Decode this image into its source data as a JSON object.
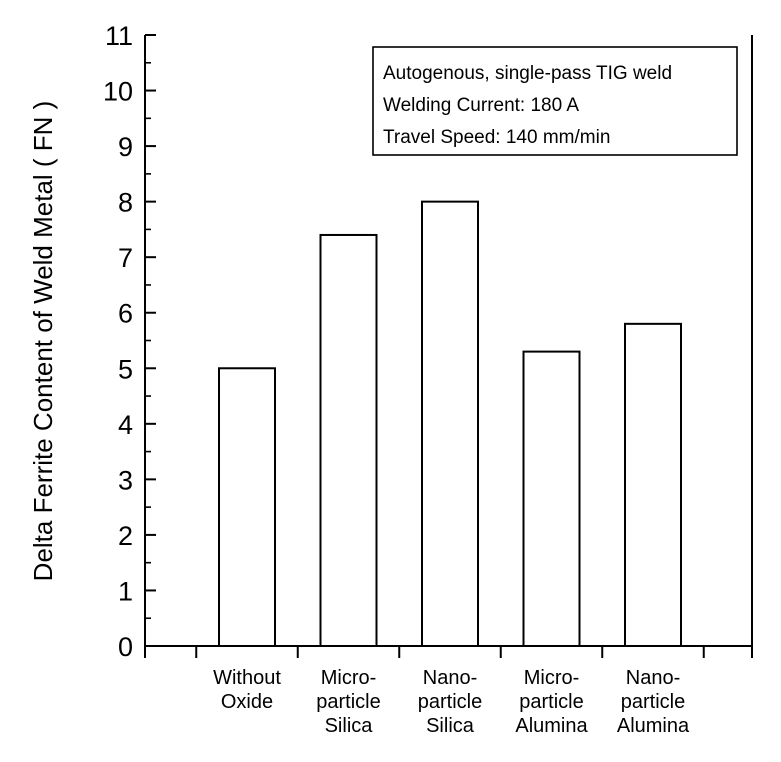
{
  "chart_data": {
    "type": "bar",
    "ylabel": "Delta Ferrite Content of Weld Metal ( FN )",
    "xlabel": "",
    "ylim": [
      0,
      11
    ],
    "yticks": [
      0,
      1,
      2,
      3,
      4,
      5,
      6,
      7,
      8,
      9,
      10,
      11
    ],
    "grid": false,
    "categories": [
      [
        "Without",
        "Oxide"
      ],
      [
        "Micro-",
        "particle",
        "Silica"
      ],
      [
        "Nano-",
        "particle",
        "Silica"
      ],
      [
        "Micro-",
        "particle",
        "Alumina"
      ],
      [
        "Nano-",
        "particle",
        "Alumina"
      ]
    ],
    "values": [
      5.0,
      7.4,
      8.0,
      5.3,
      5.8
    ],
    "annotation": [
      "Autogenous, single-pass TIG weld",
      "Welding Current: 180 A",
      "Travel Speed: 140 mm/min"
    ],
    "colors": {
      "bar_fill": "#ffffff",
      "bar_stroke": "#000000",
      "axis": "#000000"
    }
  }
}
